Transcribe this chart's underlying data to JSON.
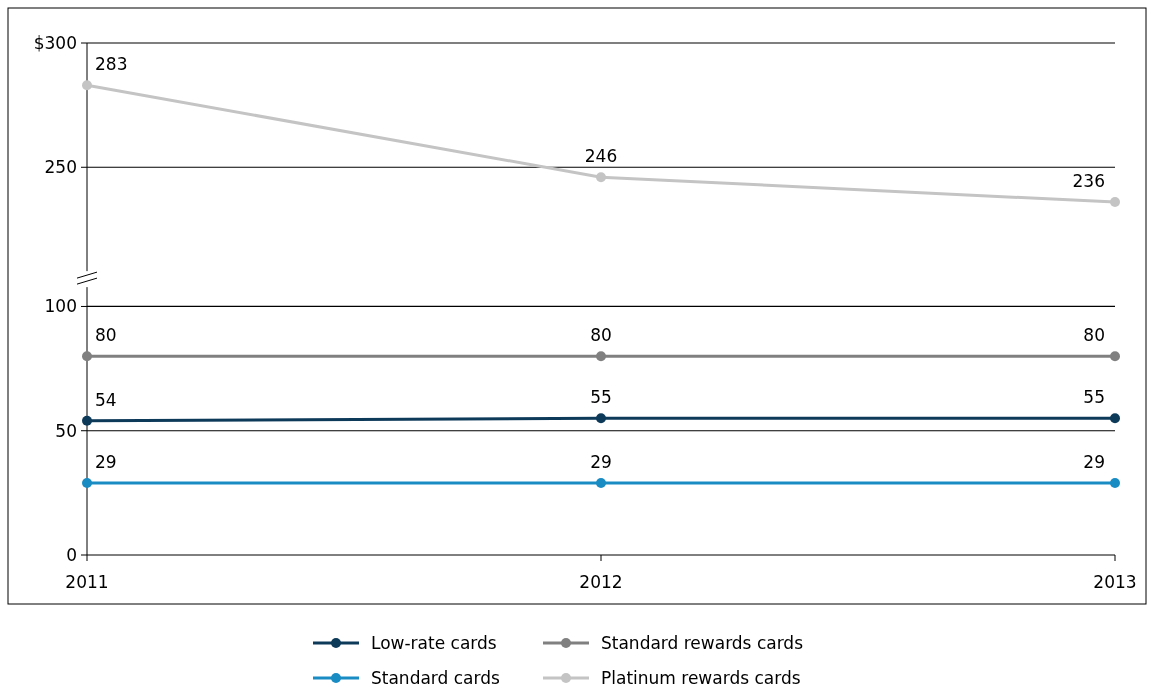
{
  "chart_data": [
    {
      "type": "line",
      "categories": [
        null,
        null,
        null
      ],
      "series": [
        {
          "name": "Platinum rewards cards",
          "color": "#c4c4c4",
          "values": [
            283,
            246,
            236
          ]
        }
      ],
      "ylim": [
        205,
        300
      ],
      "yticks": [
        250,
        {
          "value": 300,
          "label": "$300"
        }
      ],
      "grid": "y",
      "legend": "bottom",
      "marker": "circle",
      "line_style": "solid",
      "data_labels": true,
      "tick_labels": "y"
    },
    {
      "type": "line",
      "categories": [
        "2011",
        "2012",
        "2013"
      ],
      "series": [
        {
          "name": "Low-rate cards",
          "color": "#0e3a5a",
          "values": [
            54,
            55,
            55
          ]
        },
        {
          "name": "Standard rewards cards",
          "color": "#808080",
          "values": [
            80,
            80,
            80
          ]
        },
        {
          "name": "Standard cards",
          "color": "#1a8cc4",
          "values": [
            29,
            29,
            29
          ]
        }
      ],
      "ylim": [
        0,
        111
      ],
      "yticks": [
        0,
        50,
        100
      ],
      "grid": "y",
      "legend": "bottom",
      "marker": "circle",
      "line_style": "solid",
      "data_labels": true
    }
  ]
}
